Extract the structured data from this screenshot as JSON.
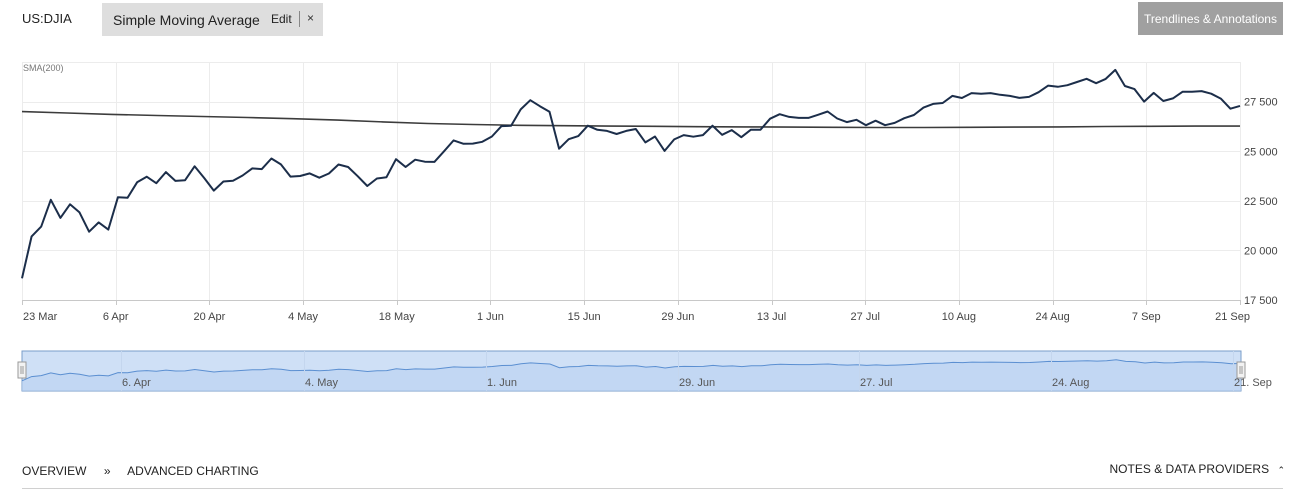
{
  "header": {
    "symbol": "US:DJIA",
    "indicator_name": "Simple Moving Average",
    "edit_label": "Edit",
    "close_label": "×",
    "trendlines_label": "Trendlines & Annotations"
  },
  "footer": {
    "overview_label": "OVERVIEW",
    "separator": "»",
    "advanced_label": "ADVANCED CHARTING",
    "notes_label": "NOTES & DATA PROVIDERS",
    "notes_icon": "chevron-up-icon"
  },
  "colors": {
    "price_line": "#1c2e4a",
    "sma_line": "#3c3c3c",
    "navigator_fill": "#cfe0f6",
    "navigator_line": "#5b8fd1",
    "navigator_border": "#7a9ec9"
  },
  "chart_data": {
    "type": "line",
    "sma_label": "SMA(200)",
    "x_tick_labels": [
      "23 Mar",
      "6 Apr",
      "20 Apr",
      "4 May",
      "18 May",
      "1 Jun",
      "15 Jun",
      "29 Jun",
      "13 Jul",
      "27 Jul",
      "10 Aug",
      "24 Aug",
      "7 Sep",
      "21 Sep"
    ],
    "y_tick_labels": [
      "27 500",
      "25 000",
      "22 500",
      "20 000",
      "17 500"
    ],
    "y_ticks": [
      27500,
      25000,
      22500,
      20000,
      17500
    ],
    "ylim": [
      17500,
      29500
    ],
    "grid": true,
    "series": [
      {
        "name": "US:DJIA",
        "values": [
          18592,
          20705,
          21200,
          22552,
          21637,
          22327,
          21917,
          20944,
          21413,
          21052,
          22680,
          22653,
          23434,
          23719,
          23391,
          23950,
          23504,
          23537,
          24242,
          23650,
          23018,
          23475,
          23515,
          23775,
          24134,
          24102,
          24634,
          24337,
          23724,
          23750,
          23883,
          23664,
          23876,
          24332,
          24206,
          23740,
          23247,
          23625,
          23685,
          24597,
          24206,
          24575,
          24474,
          24465,
          24995,
          25548,
          25383,
          25384,
          25475,
          25742,
          26270,
          26282,
          27111,
          27572,
          27272,
          26990,
          25128,
          25606,
          25764,
          26290,
          26080,
          26025,
          25871,
          26025,
          26120,
          25445,
          25745,
          25016,
          25595,
          25813,
          25735,
          25812,
          26288,
          25827,
          26067,
          25707,
          26087,
          26086,
          26643,
          26870,
          26734,
          26680,
          26680,
          26840,
          27005,
          26653,
          26469,
          26585,
          26313,
          26539,
          26314,
          26428,
          26664,
          26829,
          27202,
          27386,
          27433,
          27791,
          27687,
          27931,
          27896,
          27932,
          27844,
          27791,
          27692,
          27740,
          27977,
          28308,
          28248,
          28331,
          28492,
          28654,
          28430,
          28646,
          29100,
          28292,
          28133,
          27501,
          27940,
          27534,
          27665,
          27995,
          28001,
          28032,
          27902,
          27657,
          27147,
          27288
        ]
      },
      {
        "name": "SMA(200)",
        "values": [
          27000,
          26930,
          26860,
          26800,
          26750,
          26700,
          26640,
          26570,
          26480,
          26400,
          26350,
          26310,
          26290,
          26270,
          26260,
          26240,
          26230,
          26220,
          26210,
          26200,
          26200,
          26210,
          26220,
          26230,
          26250,
          26260,
          26270,
          26270
        ]
      }
    ],
    "navigator_labels": [
      "6. Apr",
      "4. May",
      "1. Jun",
      "29. Jun",
      "27. Jul",
      "24. Aug",
      "21. Sep"
    ]
  }
}
